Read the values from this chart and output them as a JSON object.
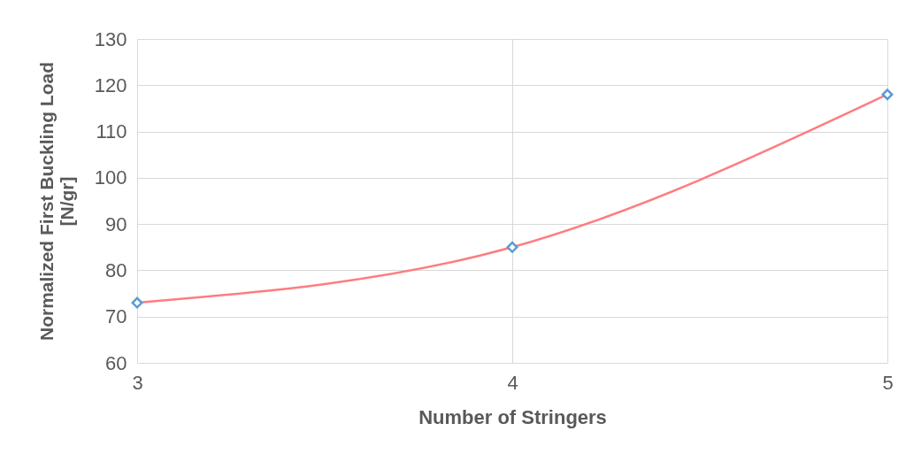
{
  "chart_data": {
    "type": "line",
    "xlabel": "Number of Stringers",
    "ylabel": "Normalized First Buckling Load [N/gr]",
    "x": [
      3,
      4,
      5
    ],
    "series": [
      {
        "color": "#ff7c80",
        "values": [
          73,
          85,
          118
        ]
      }
    ],
    "xlim": [
      3,
      5
    ],
    "xticks": [
      3,
      4,
      5
    ],
    "ylim": [
      60,
      130
    ],
    "yticks": [
      60,
      70,
      80,
      90,
      100,
      110,
      120,
      130
    ],
    "grid": true,
    "marker": "diamond",
    "line_style": "solid"
  }
}
